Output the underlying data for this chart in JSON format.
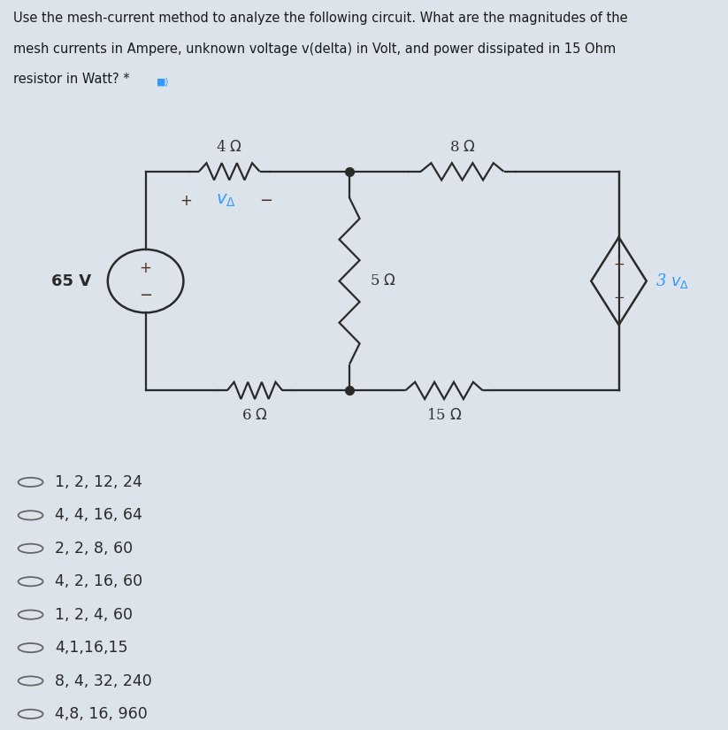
{
  "title_line1": "Use the mesh-current method to analyze the following circuit. What are the magnitudes of the",
  "title_line2": "mesh currents in Ampere, unknown voltage v(delta) in Volt, and power dissipated in 15 Ohm",
  "title_line3": "resistor in Watt? *",
  "bg_color": "#dde3ea",
  "circuit_bg": "#ffffff",
  "options": [
    "1, 2, 12, 24",
    "4, 4, 16, 64",
    "2, 2, 8, 60",
    "4, 2, 16, 60",
    "1, 2, 4, 60",
    "4,1,16,15",
    "8, 4, 32, 240",
    "4,8, 16, 960"
  ],
  "black": "#1a1a1a",
  "dark_brown": "#5a4030",
  "cyan": "#3399ff",
  "circuit_line_color": "#2a2a2a",
  "resistor_label_color": "#333333",
  "source_label_color": "#4a3020",
  "volt_source_label": "65 V",
  "dep_source_label": "3 vΔ",
  "r1_label": "4 Ω",
  "r2_label": "8 Ω",
  "r3_label": "5 Ω",
  "r4_label": "6 Ω",
  "r5_label": "15 Ω",
  "vd_label": "vΔ"
}
